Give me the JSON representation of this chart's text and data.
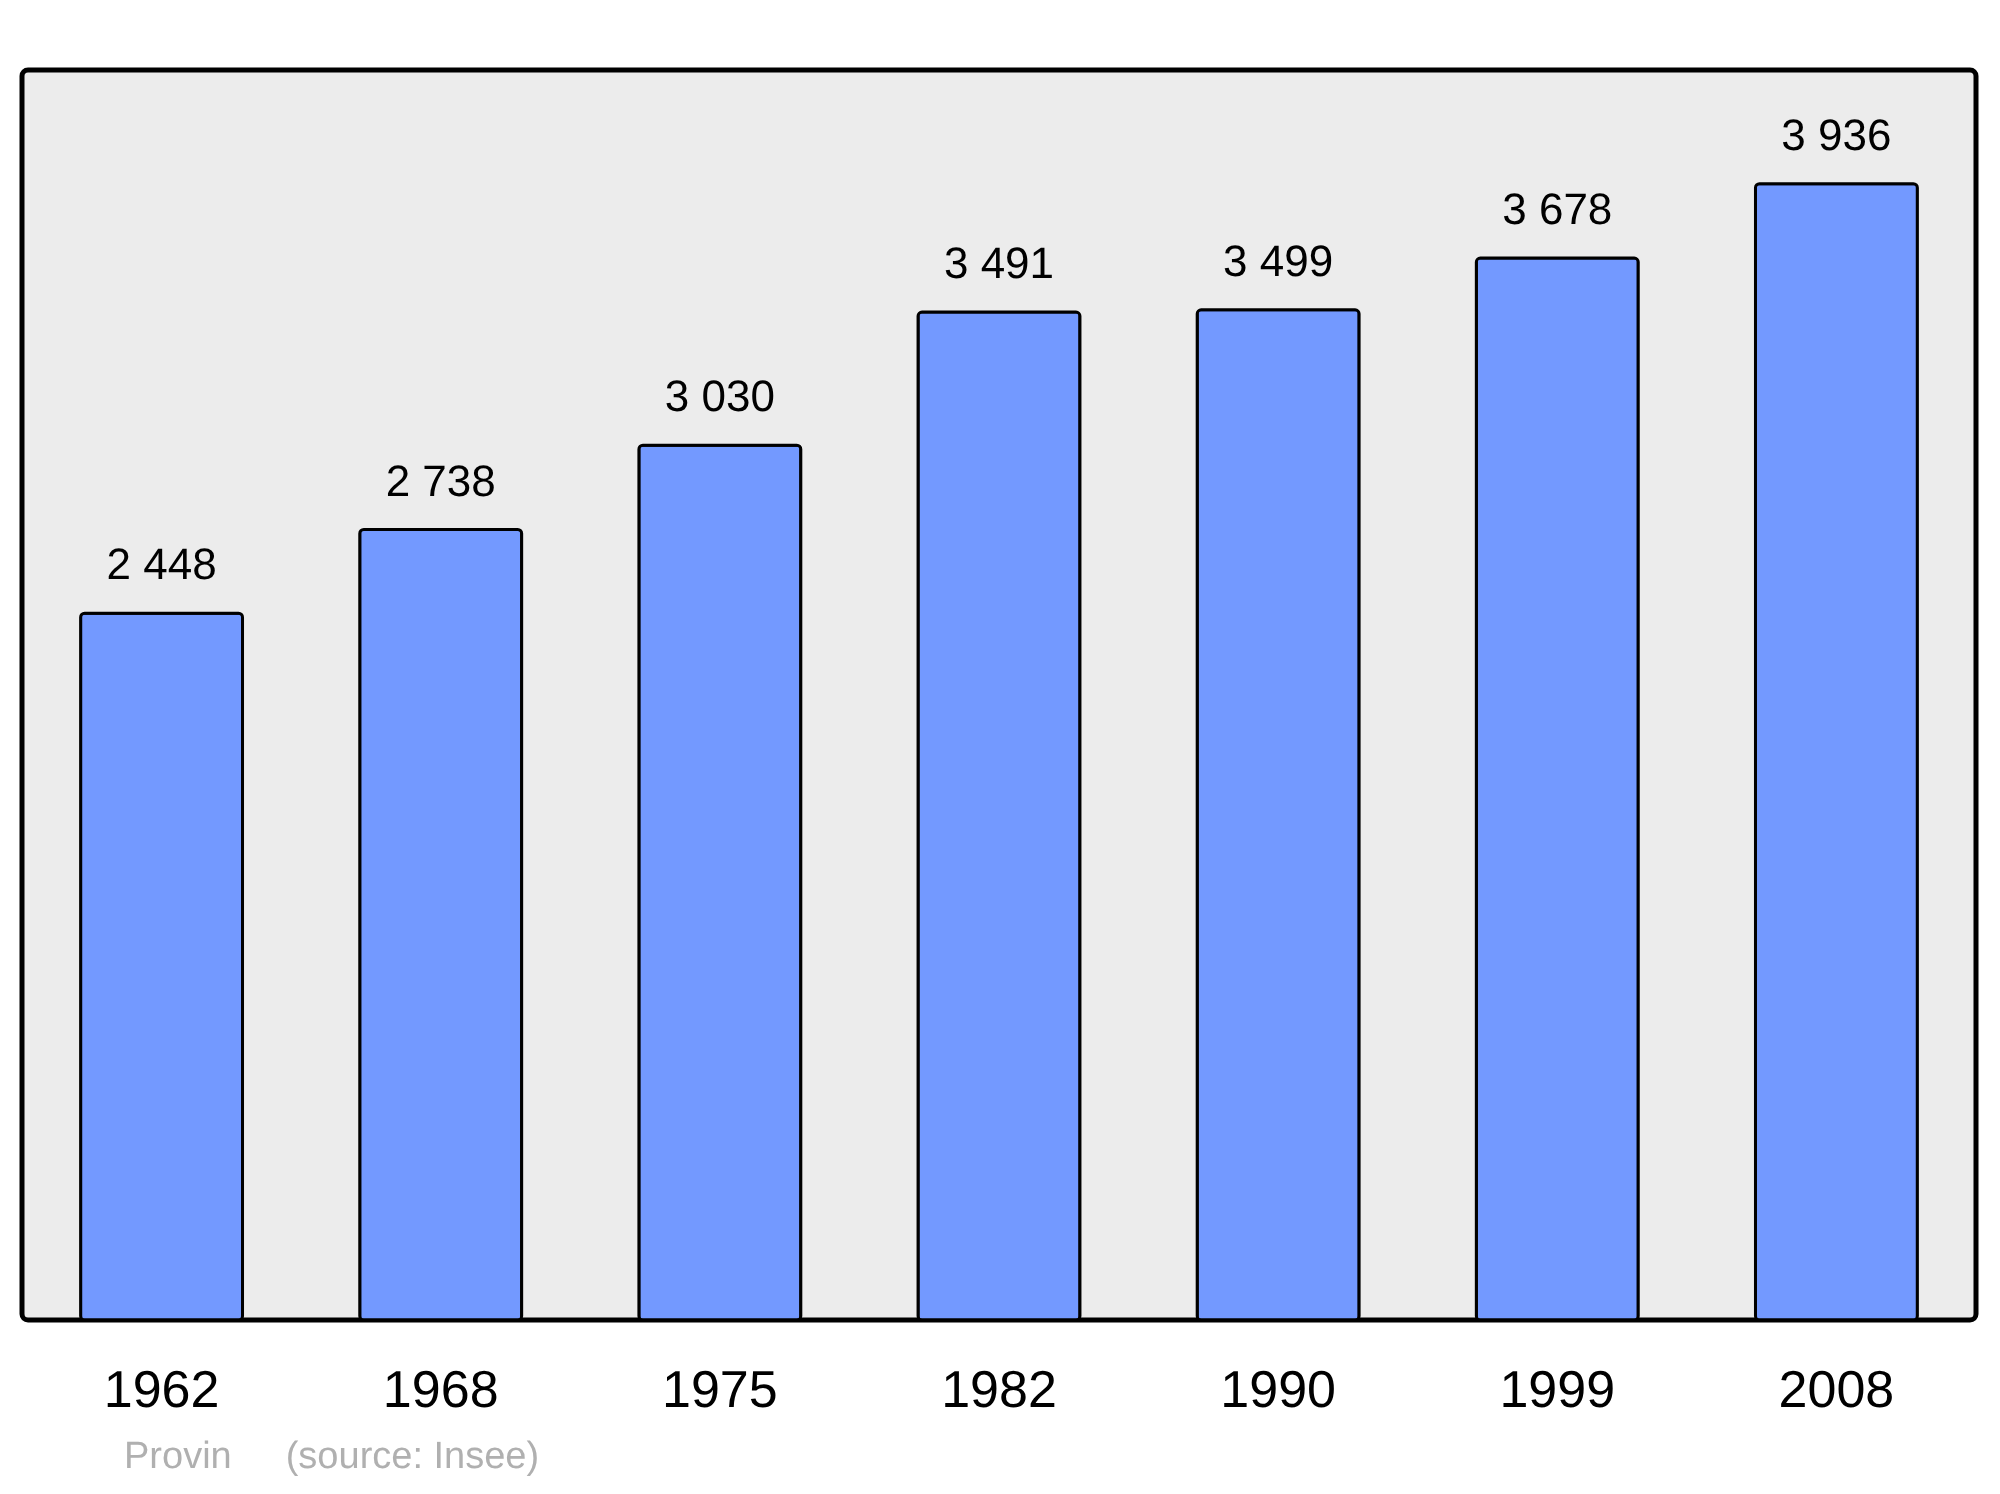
{
  "chart_data": {
    "type": "bar",
    "categories": [
      "1962",
      "1968",
      "1975",
      "1982",
      "1990",
      "1999",
      "2008"
    ],
    "values": [
      2448,
      2738,
      3030,
      3491,
      3499,
      3678,
      3936
    ],
    "value_labels": [
      "2 448",
      "2 738",
      "3 030",
      "3 491",
      "3 499",
      "3 678",
      "3 936"
    ],
    "color": "#7399ff",
    "grid": false,
    "annotations": [
      "Provin",
      "(source: Insee)"
    ]
  }
}
